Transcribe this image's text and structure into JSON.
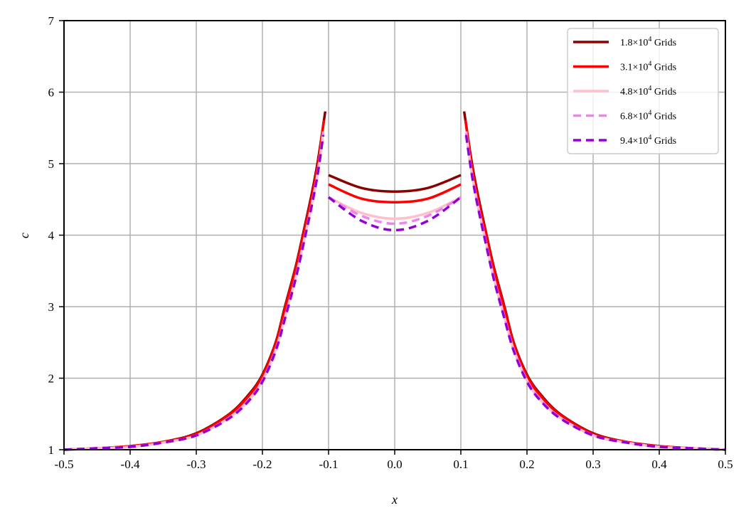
{
  "chart_data": {
    "type": "line",
    "title": "",
    "xlabel": "x",
    "ylabel": "c",
    "xlim": [
      -0.5,
      0.5
    ],
    "ylim": [
      1,
      7
    ],
    "grid": true,
    "legend_position": "upper right",
    "xticks": [
      "-0.5",
      "-0.4",
      "-0.3",
      "-0.2",
      "-0.1",
      "0.0",
      "0.1",
      "0.2",
      "0.3",
      "0.4",
      "0.5"
    ],
    "yticks": [
      "1",
      "2",
      "3",
      "4",
      "5",
      "6",
      "7"
    ],
    "series": [
      {
        "name": "1.8×10^4 Grids",
        "label_main": "1.8×10",
        "label_exp": "4",
        "label_tail": " Grids",
        "color": "#8B0000",
        "dash": "solid",
        "outer": [
          [
            -0.5,
            1.0
          ],
          [
            -0.45,
            1.02
          ],
          [
            -0.4,
            1.05
          ],
          [
            -0.35,
            1.11
          ],
          [
            -0.3,
            1.23
          ],
          [
            -0.25,
            1.5
          ],
          [
            -0.22,
            1.78
          ],
          [
            -0.2,
            2.05
          ],
          [
            -0.18,
            2.5
          ],
          [
            -0.166,
            3.0
          ],
          [
            -0.15,
            3.55
          ],
          [
            -0.139,
            4.0
          ],
          [
            -0.125,
            4.6
          ],
          [
            -0.116,
            5.05
          ],
          [
            -0.105,
            5.73
          ]
        ],
        "inner": [
          [
            -0.1,
            4.84
          ],
          [
            -0.05,
            4.66
          ],
          [
            0.0,
            4.61
          ],
          [
            0.05,
            4.66
          ],
          [
            0.1,
            4.84
          ]
        ]
      },
      {
        "name": "3.1×10^4 Grids",
        "label_main": "3.1×10",
        "label_exp": "4",
        "label_tail": " Grids",
        "color": "#FF0000",
        "dash": "solid",
        "outer": [
          [
            -0.5,
            1.0
          ],
          [
            -0.45,
            1.02
          ],
          [
            -0.4,
            1.05
          ],
          [
            -0.35,
            1.11
          ],
          [
            -0.3,
            1.22
          ],
          [
            -0.25,
            1.49
          ],
          [
            -0.22,
            1.76
          ],
          [
            -0.2,
            2.03
          ],
          [
            -0.18,
            2.48
          ],
          [
            -0.166,
            2.97
          ],
          [
            -0.15,
            3.52
          ],
          [
            -0.139,
            3.97
          ],
          [
            -0.125,
            4.55
          ],
          [
            -0.116,
            5.0
          ],
          [
            -0.107,
            5.61
          ]
        ],
        "inner": [
          [
            -0.1,
            4.71
          ],
          [
            -0.05,
            4.51
          ],
          [
            0.0,
            4.46
          ],
          [
            0.05,
            4.51
          ],
          [
            0.1,
            4.71
          ]
        ]
      },
      {
        "name": "4.8×10^4 Grids",
        "label_main": "4.8×10",
        "label_exp": "4",
        "label_tail": " Grids",
        "color": "#FFC0CB",
        "dash": "solid",
        "outer": [
          [
            -0.5,
            1.0
          ],
          [
            -0.45,
            1.02
          ],
          [
            -0.4,
            1.04
          ],
          [
            -0.35,
            1.1
          ],
          [
            -0.3,
            1.2
          ],
          [
            -0.25,
            1.45
          ],
          [
            -0.22,
            1.7
          ],
          [
            -0.2,
            1.97
          ],
          [
            -0.18,
            2.4
          ],
          [
            -0.166,
            2.85
          ],
          [
            -0.15,
            3.4
          ],
          [
            -0.139,
            3.85
          ],
          [
            -0.125,
            4.45
          ],
          [
            -0.116,
            4.9
          ],
          [
            -0.108,
            5.45
          ]
        ],
        "inner": [
          [
            -0.1,
            4.53
          ],
          [
            -0.05,
            4.31
          ],
          [
            0.0,
            4.23
          ],
          [
            0.05,
            4.31
          ],
          [
            0.1,
            4.53
          ]
        ]
      },
      {
        "name": "6.8×10^4 Grids",
        "label_main": "6.8×10",
        "label_exp": "4",
        "label_tail": " Grids",
        "color": "#EE82EE",
        "dash": "dashed",
        "outer": [
          [
            -0.5,
            1.0
          ],
          [
            -0.45,
            1.02
          ],
          [
            -0.4,
            1.04
          ],
          [
            -0.35,
            1.1
          ],
          [
            -0.3,
            1.2
          ],
          [
            -0.25,
            1.45
          ],
          [
            -0.22,
            1.7
          ],
          [
            -0.2,
            1.97
          ],
          [
            -0.18,
            2.4
          ],
          [
            -0.166,
            2.85
          ],
          [
            -0.15,
            3.4
          ],
          [
            -0.139,
            3.85
          ],
          [
            -0.125,
            4.45
          ],
          [
            -0.116,
            4.9
          ],
          [
            -0.108,
            5.42
          ]
        ],
        "inner": [
          [
            -0.1,
            4.53
          ],
          [
            -0.05,
            4.27
          ],
          [
            0.0,
            4.16
          ],
          [
            0.05,
            4.27
          ],
          [
            0.1,
            4.53
          ]
        ]
      },
      {
        "name": "9.4×10^4 Grids",
        "label_main": "9.4×10",
        "label_exp": "4",
        "label_tail": " Grids",
        "color": "#9400D3",
        "dash": "dashed",
        "outer": [
          [
            -0.5,
            1.0
          ],
          [
            -0.45,
            1.02
          ],
          [
            -0.4,
            1.04
          ],
          [
            -0.35,
            1.1
          ],
          [
            -0.3,
            1.2
          ],
          [
            -0.25,
            1.44
          ],
          [
            -0.22,
            1.69
          ],
          [
            -0.2,
            1.95
          ],
          [
            -0.18,
            2.38
          ],
          [
            -0.166,
            2.83
          ],
          [
            -0.15,
            3.38
          ],
          [
            -0.139,
            3.83
          ],
          [
            -0.125,
            4.43
          ],
          [
            -0.116,
            4.88
          ],
          [
            -0.108,
            5.4
          ]
        ],
        "inner": [
          [
            -0.1,
            4.53
          ],
          [
            -0.05,
            4.2
          ],
          [
            0.0,
            4.07
          ],
          [
            0.05,
            4.2
          ],
          [
            0.1,
            4.53
          ]
        ]
      }
    ]
  }
}
